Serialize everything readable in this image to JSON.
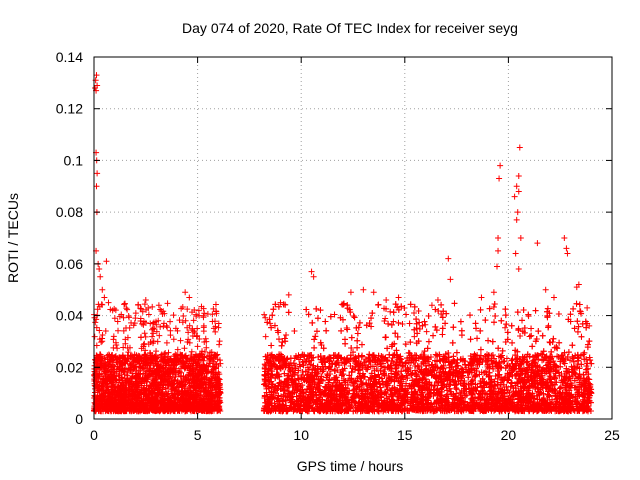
{
  "chart_data": {
    "type": "scatter",
    "title": "Day 074 of 2020, Rate Of TEC Index for receiver seyg",
    "xlabel": "GPS time / hours",
    "ylabel": "ROTI / TECUs",
    "xlim": [
      0,
      25
    ],
    "ylim": [
      0,
      0.14
    ],
    "xticks": [
      0,
      5,
      10,
      15,
      20,
      25
    ],
    "xtick_labels": [
      "0",
      "5",
      "10",
      "15",
      "20",
      "25"
    ],
    "yticks": [
      0,
      0.02,
      0.04,
      0.06,
      0.08,
      0.1,
      0.12,
      0.14
    ],
    "ytick_labels": [
      "0",
      "0.02",
      "0.04",
      "0.06",
      "0.08",
      "0.1",
      "0.12",
      "0.14"
    ],
    "grid": true,
    "marker": "+",
    "color": "#ff0000",
    "series": [
      {
        "points": [
          [
            0.05,
            0.128
          ],
          [
            0.08,
            0.131
          ],
          [
            0.1,
            0.127
          ],
          [
            0.12,
            0.133
          ],
          [
            0.15,
            0.129
          ],
          [
            0.1,
            0.103
          ],
          [
            0.13,
            0.1
          ],
          [
            0.15,
            0.095
          ],
          [
            0.12,
            0.09
          ],
          [
            0.14,
            0.08
          ],
          [
            0.1,
            0.065
          ],
          [
            0.2,
            0.06
          ],
          [
            0.25,
            0.058
          ],
          [
            0.3,
            0.055
          ],
          [
            0.6,
            0.061
          ],
          [
            0.4,
            0.05
          ],
          [
            0.5,
            0.047
          ],
          [
            0.7,
            0.045
          ],
          [
            0.9,
            0.042
          ],
          [
            2.5,
            0.046
          ],
          [
            4.4,
            0.049
          ],
          [
            4.6,
            0.047
          ],
          [
            3.1,
            0.038
          ],
          [
            3.5,
            0.036
          ],
          [
            5.3,
            0.034
          ],
          [
            8.5,
            0.037
          ],
          [
            9.0,
            0.045
          ],
          [
            9.4,
            0.048
          ],
          [
            10.5,
            0.057
          ],
          [
            10.6,
            0.055
          ],
          [
            12.4,
            0.049
          ],
          [
            13.0,
            0.05
          ],
          [
            13.5,
            0.049
          ],
          [
            14.1,
            0.046
          ],
          [
            14.7,
            0.047
          ],
          [
            17.1,
            0.062
          ],
          [
            17.2,
            0.054
          ],
          [
            16.6,
            0.046
          ],
          [
            18.7,
            0.047
          ],
          [
            19.3,
            0.049
          ],
          [
            19.6,
            0.098
          ],
          [
            19.55,
            0.093
          ],
          [
            19.5,
            0.07
          ],
          [
            19.5,
            0.065
          ],
          [
            19.45,
            0.059
          ],
          [
            20.3,
            0.086
          ],
          [
            20.4,
            0.09
          ],
          [
            20.5,
            0.094
          ],
          [
            20.55,
            0.105
          ],
          [
            20.5,
            0.088
          ],
          [
            20.45,
            0.08
          ],
          [
            20.4,
            0.077
          ],
          [
            20.35,
            0.064
          ],
          [
            20.6,
            0.07
          ],
          [
            20.5,
            0.058
          ],
          [
            21.4,
            0.068
          ],
          [
            21.8,
            0.05
          ],
          [
            22.2,
            0.047
          ],
          [
            22.7,
            0.07
          ],
          [
            22.8,
            0.066
          ],
          [
            22.85,
            0.064
          ],
          [
            23.3,
            0.051
          ],
          [
            23.4,
            0.052
          ],
          [
            23.8,
            0.043
          ],
          [
            23.9,
            0.036
          ]
        ]
      }
    ],
    "dense_band": {
      "description_note": "dense scatter of ROTI values between 0.003 and ~0.03 over 0–6.1 h and 8.2–24 h",
      "ranges": [
        [
          0.0,
          6.1
        ],
        [
          8.2,
          24.0
        ]
      ],
      "baseline_range": [
        0.003,
        0.025
      ],
      "peak_range": [
        0.02,
        0.045
      ]
    }
  }
}
